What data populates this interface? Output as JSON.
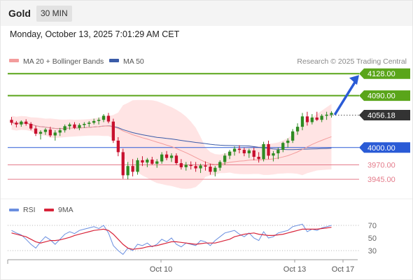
{
  "header": {
    "title": "Gold",
    "timeframe": "30 MIN"
  },
  "datetime": "Monday, October 13, 2025 7:01:29 AM CET",
  "legend": {
    "ma20": "MA 20 + Bollinger Bands",
    "ma50": "MA 50",
    "credit": "Research © 2025 Trading Central",
    "rsi": "RSI",
    "rsi9": "9MA"
  },
  "colors": {
    "bull": "#2e8b22",
    "bear": "#c8102e",
    "bollinger": "#ffb7b7",
    "ma20": "#f39c9c",
    "ma50": "#3a5ba8",
    "resistance": "#5aa51a",
    "pivot": "#2a5bd6",
    "support": "#e47b8a",
    "rsi": "#6a8fe0",
    "rsi_ma": "#d8243a",
    "arrow": "#2a5bd6"
  },
  "chart_data": {
    "type": "candlestick",
    "instrument": "Gold",
    "interval": "30 MIN",
    "ylim": [
      3927,
      4138
    ],
    "x_ticks": [
      "Oct 10",
      "Oct 13",
      "Oct 17"
    ],
    "levels": [
      {
        "value": "4128.00",
        "kind": "resistance"
      },
      {
        "value": "4090.00",
        "kind": "resistance"
      },
      {
        "value": "4056.18",
        "kind": "last"
      },
      {
        "value": "4000.00",
        "kind": "pivot"
      },
      {
        "value": "3970.00",
        "kind": "support"
      },
      {
        "value": "3945.00",
        "kind": "support"
      }
    ],
    "target_arrow": {
      "from": 4056,
      "to": 4128
    },
    "candles": [
      [
        4048,
        4053,
        4039,
        4043
      ],
      [
        4043,
        4046,
        4035,
        4040
      ],
      [
        4040,
        4047,
        4036,
        4045
      ],
      [
        4045,
        4049,
        4038,
        4041
      ],
      [
        4041,
        4044,
        4030,
        4033
      ],
      [
        4033,
        4038,
        4020,
        4024
      ],
      [
        4024,
        4030,
        4014,
        4027
      ],
      [
        4027,
        4034,
        4022,
        4031
      ],
      [
        4031,
        4036,
        4018,
        4021
      ],
      [
        4021,
        4030,
        4012,
        4026
      ],
      [
        4026,
        4034,
        4020,
        4030
      ],
      [
        4030,
        4040,
        4026,
        4037
      ],
      [
        4037,
        4043,
        4031,
        4040
      ],
      [
        4040,
        4044,
        4032,
        4034
      ],
      [
        4034,
        4042,
        4030,
        4039
      ],
      [
        4039,
        4044,
        4034,
        4041
      ],
      [
        4041,
        4046,
        4036,
        4043
      ],
      [
        4043,
        4050,
        4040,
        4046
      ],
      [
        4046,
        4052,
        4040,
        4048
      ],
      [
        4048,
        4058,
        4044,
        4055
      ],
      [
        4055,
        4060,
        4042,
        4045
      ],
      [
        4045,
        4050,
        4008,
        4012
      ],
      [
        4012,
        4018,
        3985,
        3992
      ],
      [
        3992,
        3998,
        3946,
        3952
      ],
      [
        3952,
        3975,
        3945,
        3968
      ],
      [
        3968,
        3980,
        3950,
        3958
      ],
      [
        3958,
        3982,
        3953,
        3978
      ],
      [
        3978,
        3985,
        3968,
        3974
      ],
      [
        3974,
        3982,
        3966,
        3979
      ],
      [
        3979,
        3984,
        3970,
        3972
      ],
      [
        3972,
        3980,
        3965,
        3976
      ],
      [
        3976,
        3992,
        3972,
        3988
      ],
      [
        3988,
        3994,
        3978,
        3982
      ],
      [
        3982,
        3990,
        3975,
        3986
      ],
      [
        3986,
        3990,
        3970,
        3973
      ],
      [
        3973,
        3980,
        3962,
        3966
      ],
      [
        3966,
        3975,
        3960,
        3970
      ],
      [
        3970,
        3976,
        3962,
        3968
      ],
      [
        3968,
        3975,
        3958,
        3964
      ],
      [
        3964,
        3972,
        3956,
        3969
      ],
      [
        3969,
        3976,
        3960,
        3967
      ],
      [
        3967,
        3972,
        3953,
        3958
      ],
      [
        3958,
        3968,
        3950,
        3965
      ],
      [
        3965,
        3978,
        3960,
        3975
      ],
      [
        3975,
        3990,
        3970,
        3986
      ],
      [
        3986,
        3996,
        3980,
        3993
      ],
      [
        3993,
        4002,
        3986,
        3998
      ],
      [
        3998,
        4004,
        3990,
        3996
      ],
      [
        3996,
        4000,
        3985,
        3990
      ],
      [
        3990,
        3998,
        3982,
        3995
      ],
      [
        3995,
        4000,
        3978,
        3984
      ],
      [
        3984,
        3992,
        3974,
        3980
      ],
      [
        3980,
        4010,
        3976,
        4006
      ],
      [
        4006,
        4012,
        3980,
        3986
      ],
      [
        3986,
        3994,
        3976,
        3990
      ],
      [
        3990,
        4000,
        3980,
        3996
      ],
      [
        3996,
        4010,
        3992,
        4008
      ],
      [
        4008,
        4016,
        4000,
        4012
      ],
      [
        4012,
        4032,
        4008,
        4028
      ],
      [
        4028,
        4042,
        4022,
        4036
      ],
      [
        4036,
        4060,
        4030,
        4054
      ],
      [
        4054,
        4062,
        4038,
        4044
      ],
      [
        4044,
        4058,
        4040,
        4052
      ],
      [
        4052,
        4062,
        4046,
        4048
      ],
      [
        4048,
        4058,
        4044,
        4055
      ],
      [
        4055,
        4062,
        4048,
        4057
      ],
      [
        4057,
        4063,
        4052,
        4060
      ]
    ],
    "rsi": {
      "axis_ticks": [
        "70",
        "50",
        "30"
      ],
      "ylim": [
        20,
        80
      ],
      "rsi_values": [
        62,
        58,
        55,
        48,
        40,
        34,
        44,
        52,
        47,
        40,
        48,
        56,
        60,
        57,
        62,
        64,
        66,
        68,
        65,
        70,
        58,
        38,
        30,
        24,
        34,
        30,
        40,
        38,
        42,
        36,
        40,
        48,
        44,
        50,
        40,
        36,
        42,
        40,
        38,
        46,
        44,
        38,
        46,
        52,
        58,
        60,
        62,
        56,
        52,
        58,
        50,
        46,
        60,
        50,
        52,
        58,
        60,
        62,
        68,
        70,
        72,
        60,
        64,
        62,
        66,
        68,
        70
      ],
      "ma_values": [
        58,
        56,
        54,
        52,
        48,
        44,
        42,
        44,
        46,
        46,
        47,
        49,
        51,
        54,
        56,
        58,
        60,
        62,
        63,
        64,
        62,
        56,
        48,
        40,
        34,
        32,
        33,
        34,
        36,
        37,
        38,
        40,
        42,
        44,
        44,
        43,
        42,
        41,
        40,
        41,
        42,
        42,
        42,
        44,
        46,
        48,
        52,
        54,
        56,
        57,
        58,
        56,
        55,
        54,
        54,
        55,
        56,
        58,
        60,
        62,
        64,
        64,
        64,
        64,
        65,
        66,
        67
      ]
    }
  }
}
